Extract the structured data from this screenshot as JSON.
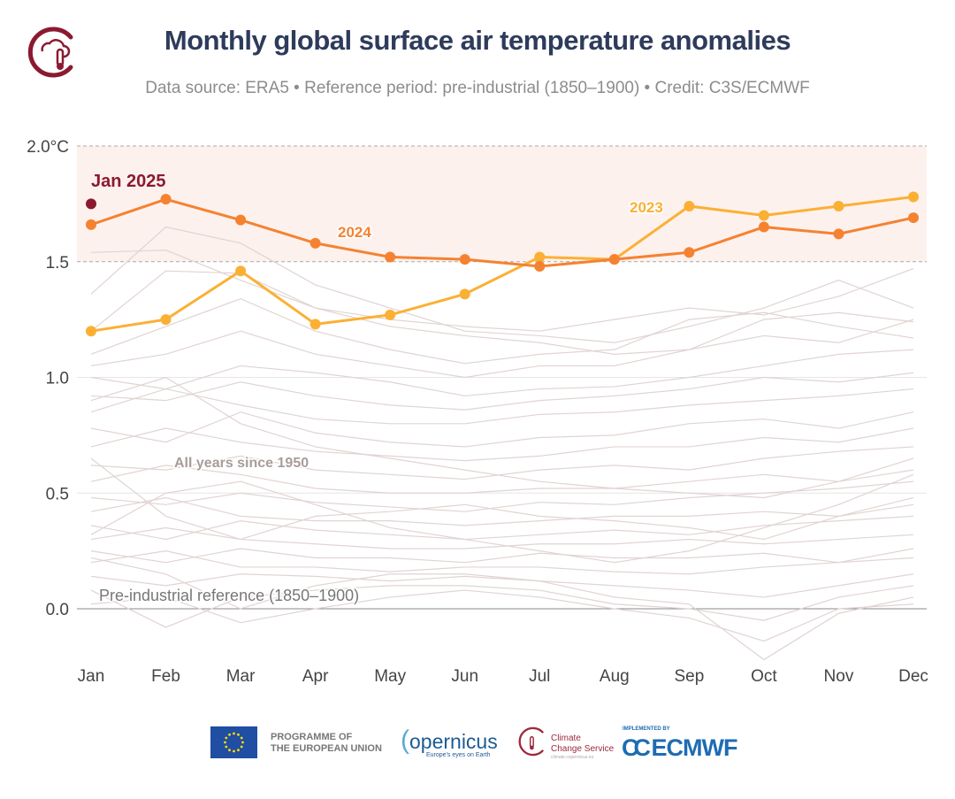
{
  "header": {
    "title": "Monthly global surface air temperature anomalies",
    "subtitle": "Data source: ERA5 • Reference period: pre-industrial (1850–1900) • Credit: C3S/ECMWF"
  },
  "chart_data": {
    "type": "line",
    "title": "Monthly global surface air temperature anomalies",
    "categories": [
      "Jan",
      "Feb",
      "Mar",
      "Apr",
      "May",
      "Jun",
      "Jul",
      "Aug",
      "Sep",
      "Oct",
      "Nov",
      "Dec"
    ],
    "y_ticks": [
      "0.0",
      "0.5",
      "1.0",
      "1.5",
      "2.0°C"
    ],
    "y_tick_values": [
      0,
      0.5,
      1.0,
      1.5,
      2.0
    ],
    "ylim": [
      -0.3,
      2.0
    ],
    "grid": true,
    "highlight_band": [
      1.5,
      2.0
    ],
    "colors": {
      "y2024": "#f58231",
      "y2023": "#fbb034",
      "jan2025": "#8b1a30",
      "background": "#e0d4d2",
      "band": "#fdf1ee",
      "title": "#2e3b5b"
    },
    "series": [
      {
        "name": "2024",
        "values": [
          1.66,
          1.77,
          1.68,
          1.58,
          1.52,
          1.51,
          1.48,
          1.51,
          1.54,
          1.65,
          1.62,
          1.69
        ]
      },
      {
        "name": "2023",
        "values": [
          1.2,
          1.25,
          1.46,
          1.23,
          1.27,
          1.36,
          1.52,
          1.51,
          1.74,
          1.7,
          1.74,
          1.78
        ]
      }
    ],
    "point_2025": {
      "name": "Jan 2025",
      "month": "Jan",
      "value": 1.75
    },
    "background_label": "All years since 1950",
    "background_series": [
      [
        1.54,
        1.55,
        1.42,
        1.3,
        1.22,
        1.18,
        1.15,
        1.1,
        1.12,
        1.25,
        1.28,
        1.24
      ],
      [
        1.36,
        1.65,
        1.58,
        1.4,
        1.3,
        1.2,
        1.18,
        1.15,
        1.22,
        1.3,
        1.42,
        1.3
      ],
      [
        1.2,
        1.46,
        1.45,
        1.3,
        1.25,
        1.22,
        1.2,
        1.25,
        1.3,
        1.27,
        1.35,
        1.47
      ],
      [
        1.1,
        1.22,
        1.34,
        1.2,
        1.12,
        1.06,
        1.1,
        1.12,
        1.25,
        1.28,
        1.22,
        1.17
      ],
      [
        1.05,
        1.1,
        1.2,
        1.1,
        1.05,
        1.0,
        1.05,
        1.05,
        1.12,
        1.18,
        1.15,
        1.25
      ],
      [
        1.0,
        0.95,
        1.05,
        1.02,
        0.98,
        0.92,
        0.95,
        0.96,
        1.0,
        1.05,
        1.1,
        1.12
      ],
      [
        0.92,
        0.9,
        0.98,
        0.92,
        0.88,
        0.86,
        0.9,
        0.92,
        0.95,
        1.0,
        0.98,
        1.02
      ],
      [
        0.85,
        0.95,
        0.88,
        0.82,
        0.8,
        0.8,
        0.84,
        0.85,
        0.88,
        0.9,
        0.92,
        0.95
      ],
      [
        0.78,
        0.72,
        0.85,
        0.76,
        0.72,
        0.7,
        0.74,
        0.75,
        0.8,
        0.82,
        0.78,
        0.85
      ],
      [
        0.7,
        0.78,
        0.72,
        0.68,
        0.66,
        0.64,
        0.66,
        0.7,
        0.7,
        0.74,
        0.72,
        0.78
      ],
      [
        0.62,
        0.6,
        0.66,
        0.6,
        0.58,
        0.56,
        0.6,
        0.62,
        0.6,
        0.65,
        0.68,
        0.7
      ],
      [
        0.55,
        0.62,
        0.58,
        0.52,
        0.5,
        0.5,
        0.52,
        0.52,
        0.55,
        0.58,
        0.55,
        0.6
      ],
      [
        0.48,
        0.45,
        0.5,
        0.46,
        0.44,
        0.42,
        0.46,
        0.45,
        0.48,
        0.5,
        0.52,
        0.55
      ],
      [
        0.42,
        0.48,
        0.4,
        0.38,
        0.38,
        0.36,
        0.38,
        0.4,
        0.4,
        0.42,
        0.4,
        0.45
      ],
      [
        0.36,
        0.3,
        0.38,
        0.34,
        0.32,
        0.3,
        0.32,
        0.34,
        0.32,
        0.36,
        0.38,
        0.4
      ],
      [
        0.3,
        0.35,
        0.3,
        0.28,
        0.26,
        0.26,
        0.28,
        0.28,
        0.3,
        0.28,
        0.3,
        0.32
      ],
      [
        0.25,
        0.2,
        0.26,
        0.22,
        0.22,
        0.2,
        0.24,
        0.22,
        0.22,
        0.24,
        0.2,
        0.26
      ],
      [
        0.2,
        0.25,
        0.18,
        0.18,
        0.16,
        0.18,
        0.18,
        0.16,
        0.15,
        0.18,
        0.2,
        0.22
      ],
      [
        0.14,
        0.1,
        0.15,
        0.14,
        0.12,
        0.14,
        0.12,
        0.1,
        0.08,
        0.05,
        0.1,
        0.15
      ],
      [
        0.08,
        -0.08,
        0.05,
        0.08,
        0.1,
        0.1,
        0.08,
        0.02,
        0.0,
        -0.05,
        0.05,
        0.1
      ],
      [
        0.02,
        0.05,
        -0.06,
        0.0,
        0.05,
        0.08,
        0.05,
        0.0,
        -0.04,
        -0.14,
        0.0,
        0.02
      ],
      [
        0.22,
        0.15,
        0.0,
        0.1,
        0.15,
        0.15,
        0.12,
        0.05,
        0.02,
        -0.22,
        -0.02,
        0.05
      ],
      [
        0.65,
        0.4,
        0.3,
        0.4,
        0.42,
        0.45,
        0.4,
        0.38,
        0.35,
        0.3,
        0.4,
        0.48
      ],
      [
        0.9,
        1.0,
        0.8,
        0.7,
        0.65,
        0.6,
        0.55,
        0.52,
        0.5,
        0.48,
        0.55,
        0.65
      ],
      [
        0.32,
        0.5,
        0.55,
        0.45,
        0.35,
        0.3,
        0.25,
        0.2,
        0.25,
        0.35,
        0.45,
        0.58
      ]
    ],
    "annotations": [
      "Pre-industrial reference (1850–1900)"
    ]
  },
  "footer": {
    "eu_text_1": "PROGRAMME OF",
    "eu_text_2": "THE EUROPEAN UNION",
    "copernicus": "opernicus",
    "copernicus_tagline": "Europe's eyes on Earth",
    "c3s_1": "Climate",
    "c3s_2": "Change Service",
    "c3s_url": "climate.copernicus.eu",
    "implemented_by": "IMPLEMENTED BY",
    "ecmwf": "ECMWF"
  }
}
